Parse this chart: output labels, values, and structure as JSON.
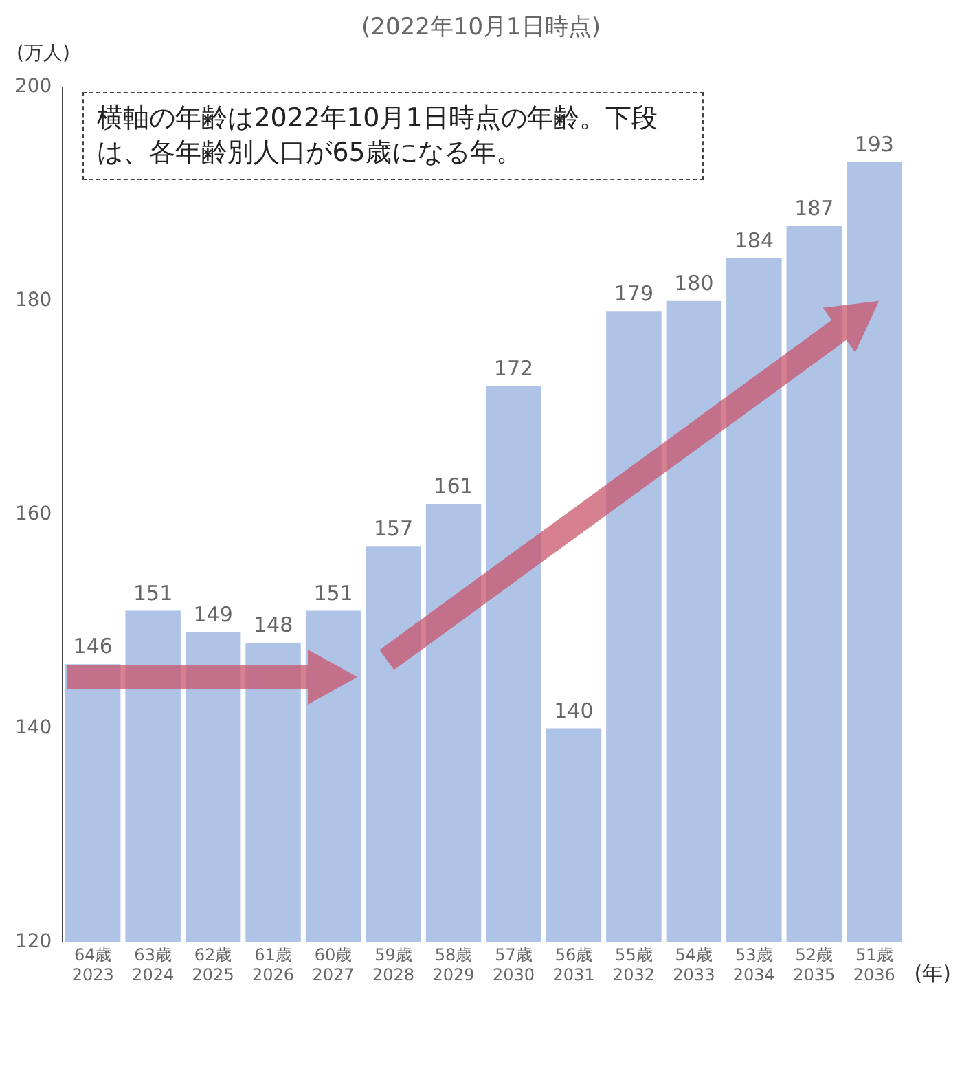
{
  "chart_data": {
    "type": "bar",
    "title": "(2022年10月1日時点)",
    "ylabel": "(万人)",
    "xlabel": "(年)",
    "categories": [
      "64歳\n2023",
      "63歳\n2024",
      "62歳\n2025",
      "61歳\n2026",
      "60歳\n2027",
      "59歳\n2028",
      "58歳\n2029",
      "57歳\n2030",
      "56歳\n2031",
      "55歳\n2032",
      "54歳\n2033",
      "53歳\n2034",
      "52歳\n2035",
      "51歳\n2036"
    ],
    "values": [
      146,
      151,
      149,
      148,
      151,
      157,
      161,
      172,
      140,
      179,
      180,
      184,
      187,
      193
    ],
    "color": "#aec3e6",
    "ylim": [
      120,
      200
    ],
    "yticks": [
      120,
      140,
      160,
      180,
      200
    ],
    "grid": false,
    "data_labels": true,
    "legend": false,
    "annotations": [
      "横軸の年齢は2022年10月1日時点の年齢。下段は、各年齢別人口が65歳になる年。"
    ]
  }
}
